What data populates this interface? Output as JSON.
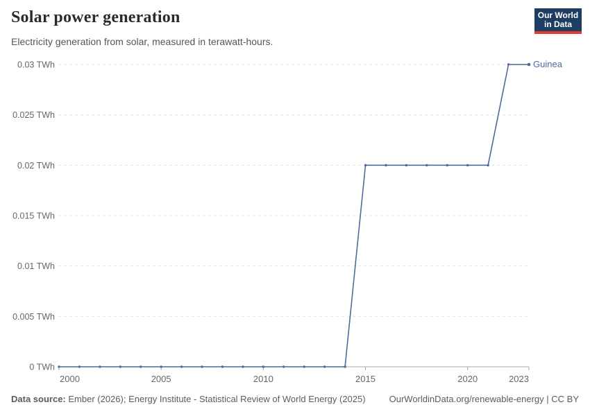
{
  "header": {
    "title": "Solar power generation",
    "subtitle": "Electricity generation from solar, measured in terawatt-hours.",
    "logo": {
      "line1": "Our World",
      "line2": "in Data",
      "bg_color": "#1d3d63",
      "accent_color": "#dc3e32"
    }
  },
  "chart_data": {
    "type": "line",
    "title": "Solar power generation",
    "unit": "TWh",
    "xlim": [
      2000,
      2023
    ],
    "ylim": [
      0,
      0.03
    ],
    "grid": "horizontal-dashed",
    "legend_position": "end-of-line",
    "x_ticks": [
      2000,
      2005,
      2010,
      2015,
      2020,
      2023
    ],
    "y_ticks": [
      0,
      0.005,
      0.01,
      0.015,
      0.02,
      0.025,
      0.03
    ],
    "y_tick_labels": [
      "0 TWh",
      "0.005 TWh",
      "0.01 TWh",
      "0.015 TWh",
      "0.02 TWh",
      "0.025 TWh",
      "0.03 TWh"
    ],
    "series": [
      {
        "name": "Guinea",
        "color": "#4c6a9c",
        "x": [
          2000,
          2001,
          2002,
          2003,
          2004,
          2005,
          2006,
          2007,
          2008,
          2009,
          2010,
          2011,
          2012,
          2013,
          2014,
          2015,
          2016,
          2017,
          2018,
          2019,
          2020,
          2021,
          2022,
          2023
        ],
        "values": [
          0,
          0,
          0,
          0,
          0,
          0,
          0,
          0,
          0,
          0,
          0,
          0,
          0,
          0,
          0,
          0.02,
          0.02,
          0.02,
          0.02,
          0.02,
          0.02,
          0.02,
          0.03,
          0.03
        ]
      }
    ]
  },
  "footer": {
    "source_label": "Data source:",
    "source_text": " Ember (2026); Energy Institute - Statistical Review of World Energy (2025)",
    "link_text": "OurWorldinData.org/renewable-energy | CC BY"
  }
}
